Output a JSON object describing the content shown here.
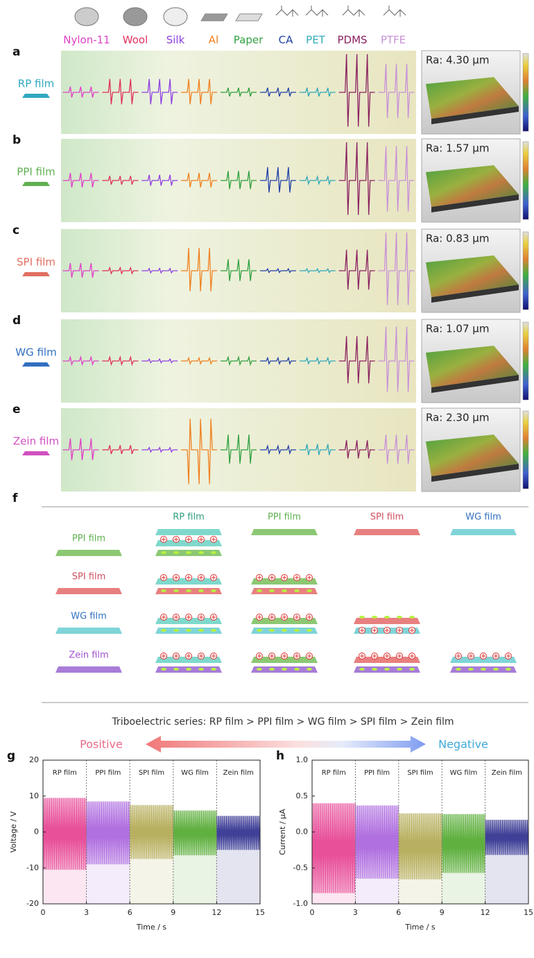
{
  "materials": [
    {
      "name": "Nylon-11",
      "color": "#e040c8"
    },
    {
      "name": "Wool",
      "color": "#e0305c"
    },
    {
      "name": "Silk",
      "color": "#9040e0"
    },
    {
      "name": "Al",
      "color": "#f08020"
    },
    {
      "name": "Paper",
      "color": "#30a040"
    },
    {
      "name": "CA",
      "color": "#2040a8"
    },
    {
      "name": "PET",
      "color": "#30a8b8"
    },
    {
      "name": "PDMS",
      "color": "#8a2060"
    },
    {
      "name": "PTFE",
      "color": "#c890d8"
    }
  ],
  "panels": [
    {
      "letter": "a",
      "film": "RP film",
      "film_color": "#30a8c0",
      "ra": "Ra: 4.30 μm",
      "relative_amplitude": [
        0.15,
        0.35,
        0.35,
        0.35,
        0.12,
        0.12,
        0.12,
        1.0,
        0.75
      ]
    },
    {
      "letter": "b",
      "film": "PPI film",
      "film_color": "#60b050",
      "ra": "Ra: 1.57 μm",
      "relative_amplitude": [
        0.2,
        0.12,
        0.15,
        0.2,
        0.25,
        0.35,
        0.1,
        1.0,
        0.9
      ]
    },
    {
      "letter": "c",
      "film": "SPI film",
      "film_color": "#e07060",
      "ra": "Ra: 0.83 μm",
      "relative_amplitude": [
        0.2,
        0.08,
        0.06,
        0.6,
        0.3,
        0.05,
        0.05,
        0.55,
        1.0
      ]
    },
    {
      "letter": "d",
      "film": "WG film",
      "film_color": "#3070c0",
      "ra": "Ra: 1.07 μm",
      "relative_amplitude": [
        0.1,
        0.1,
        0.05,
        0.08,
        0.1,
        0.08,
        0.08,
        0.65,
        0.9
      ]
    },
    {
      "letter": "e",
      "film": "Zein film",
      "film_color": "#d050c0",
      "ra": "Ra: 2.30 μm",
      "relative_amplitude": [
        0.3,
        0.12,
        0.06,
        -0.9,
        0.4,
        0.1,
        0.15,
        0.25,
        0.4
      ]
    }
  ],
  "table": {
    "letter": "f",
    "columns": [
      "RP film",
      "PPI film",
      "SPI film",
      "WG film"
    ],
    "rows": [
      "PPI film",
      "SPI film",
      "WG film",
      "Zein film"
    ]
  },
  "series_text": "Triboelectric series: RP film > PPI film > WG film > SPI film > Zein film",
  "positive": "Positive",
  "negative": "Negative",
  "chart_data": [
    {
      "type": "line",
      "letter": "g",
      "ylabel": "Voltage / V",
      "xlabel": "Time / s",
      "xlim": [
        0,
        15
      ],
      "xticks": [
        0,
        3,
        6,
        9,
        12,
        15
      ],
      "ylim": [
        -20,
        20
      ],
      "yticks": [
        -20,
        -10,
        0,
        10,
        20
      ],
      "series": [
        {
          "name": "RP film",
          "color": "#e8509a",
          "xrange": [
            0,
            3
          ],
          "max": 9.5,
          "min": -10.5
        },
        {
          "name": "PPI film",
          "color": "#b070e0",
          "xrange": [
            3,
            6
          ],
          "max": 8.5,
          "min": -9
        },
        {
          "name": "SPI film",
          "color": "#b8b060",
          "xrange": [
            6,
            9
          ],
          "max": 7.5,
          "min": -7.5
        },
        {
          "name": "WG film",
          "color": "#60b040",
          "xrange": [
            9,
            12
          ],
          "max": 6,
          "min": -6.5
        },
        {
          "name": "Zein film",
          "color": "#404098",
          "xrange": [
            12,
            15
          ],
          "max": 4.5,
          "min": -5
        }
      ]
    },
    {
      "type": "line",
      "letter": "h",
      "ylabel": "Current / μA",
      "xlabel": "Time / s",
      "xlim": [
        0,
        15
      ],
      "xticks": [
        0,
        3,
        6,
        9,
        12,
        15
      ],
      "ylim": [
        -1,
        1
      ],
      "yticks": [
        {
          "value": -1,
          "label": "-1.0"
        },
        {
          "value": -0.5,
          "label": "-0.5"
        },
        {
          "value": 0,
          "label": "0.0"
        },
        {
          "value": 0.5,
          "label": "0.5"
        },
        {
          "value": 1,
          "label": "1.0"
        }
      ],
      "series": [
        {
          "name": "RP film",
          "color": "#e8509a",
          "xrange": [
            0,
            3
          ],
          "max": 0.4,
          "min": -0.85
        },
        {
          "name": "PPI film",
          "color": "#b070e0",
          "xrange": [
            3,
            6
          ],
          "max": 0.37,
          "min": -0.65
        },
        {
          "name": "SPI film",
          "color": "#b8b060",
          "xrange": [
            6,
            9
          ],
          "max": 0.26,
          "min": -0.66
        },
        {
          "name": "WG film",
          "color": "#60b040",
          "xrange": [
            9,
            12
          ],
          "max": 0.25,
          "min": -0.57
        },
        {
          "name": "Zein film",
          "color": "#404098",
          "xrange": [
            12,
            15
          ],
          "max": 0.17,
          "min": -0.32
        }
      ]
    }
  ]
}
